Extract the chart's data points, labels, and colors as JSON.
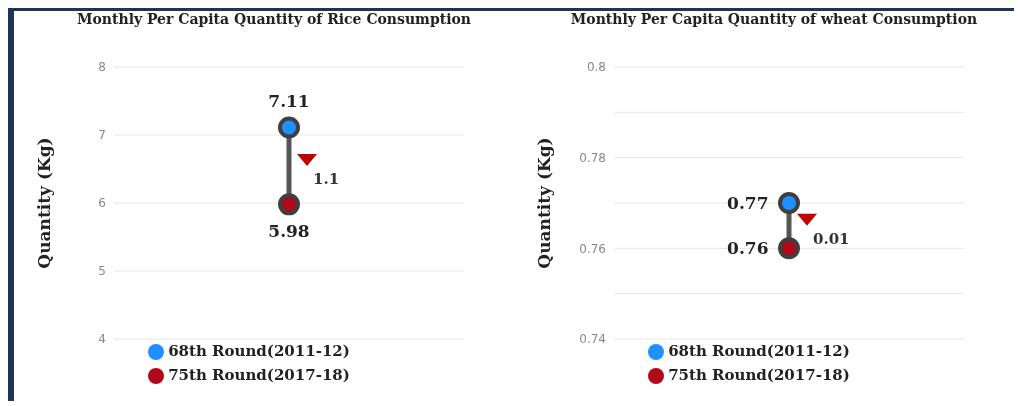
{
  "chart_data": [
    {
      "type": "scatter",
      "title": "Monthly Per Capita Quantity of Rice Consumption",
      "ylabel": "Quantity (Kg)",
      "categories": [
        null
      ],
      "series": [
        {
          "name": "75th Round(2017-18)",
          "color": "#b00a1a",
          "values": [
            5.98
          ]
        },
        {
          "name": "68th Round(2011-12)",
          "color": "#1e90ff",
          "values": [
            7.11
          ]
        }
      ],
      "annotations": [
        "1.1"
      ],
      "ylim": [
        4,
        8
      ],
      "yticks": [
        4,
        5,
        6,
        7,
        8
      ],
      "grid": "y",
      "legend": "bottom",
      "marker": "circle",
      "data_labels": true
    },
    {
      "type": "scatter",
      "title": "Monthly Per Capita Quantity of   wheat Consumption",
      "ylabel": "Quantity (Kg)",
      "categories": [
        null
      ],
      "series": [
        {
          "name": "75th Round(2017-18)",
          "color": "#b00a1a",
          "values": [
            0.76
          ]
        },
        {
          "name": "68th Round(2011-12)",
          "color": "#1e90ff",
          "values": [
            0.77
          ]
        }
      ],
      "annotations": [
        "0.01"
      ],
      "ylim": [
        0.74,
        0.8
      ],
      "yticks": [
        0.74,
        {
          "value": 0.75,
          "label": null
        },
        0.76,
        {
          "value": 0.77,
          "label": null
        },
        0.78,
        {
          "value": 0.79,
          "label": null
        },
        0.8
      ],
      "grid": "y",
      "legend": "bottom",
      "marker": "circle",
      "data_labels": true
    }
  ]
}
